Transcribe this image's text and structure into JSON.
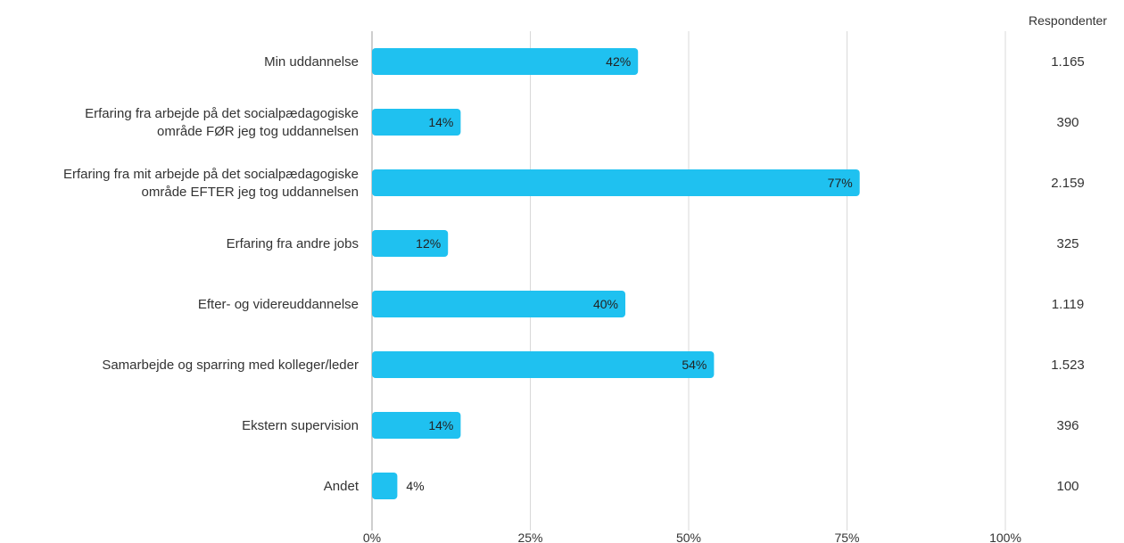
{
  "chart_data": {
    "type": "bar",
    "orientation": "horizontal",
    "categories": [
      [
        "Min uddannelse"
      ],
      [
        "Erfaring fra arbejde på det socialpædagogiske",
        "område FØR jeg tog uddannelsen"
      ],
      [
        "Erfaring fra mit arbejde på det socialpædagogiske",
        "område EFTER jeg tog uddannelsen"
      ],
      [
        "Erfaring fra andre jobs"
      ],
      [
        "Efter- og videreuddannelse"
      ],
      [
        "Samarbejde og sparring med kolleger/leder"
      ],
      [
        "Ekstern supervision"
      ],
      [
        "Andet"
      ]
    ],
    "values": [
      42,
      14,
      77,
      12,
      40,
      54,
      14,
      4
    ],
    "data_labels": [
      "42%",
      "14%",
      "77%",
      "12%",
      "40%",
      "54%",
      "14%",
      "4%"
    ],
    "xlim": [
      0,
      100
    ],
    "x_ticks": [
      0,
      25,
      50,
      75,
      100
    ],
    "x_tick_labels": [
      "0%",
      "25%",
      "50%",
      "75%",
      "100%"
    ],
    "grid": true,
    "bar_color": "#1FC1F0",
    "respondents_header": "Respondenter",
    "respondents": [
      "1.165",
      "390",
      "2.159",
      "325",
      "1.119",
      "1.523",
      "396",
      "100"
    ]
  }
}
